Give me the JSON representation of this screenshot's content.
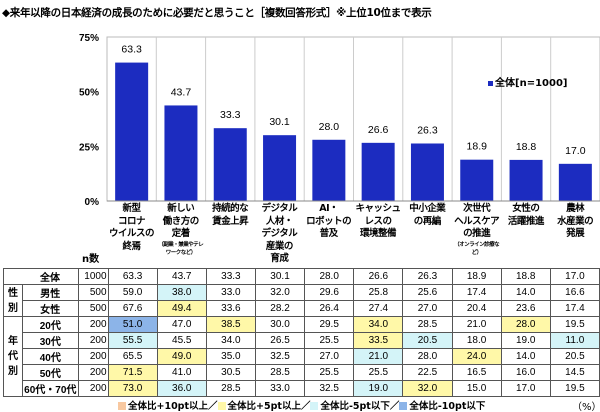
{
  "title": "◆来年以降の日本経済の成長のために必要だと思うこと［複数回答形式］※上位10位まで表示",
  "chart_data": {
    "type": "bar",
    "categories": [
      {
        "lines": [
          "新型",
          "コロナ",
          "ウイルスの",
          "終焉"
        ],
        "note": ""
      },
      {
        "lines": [
          "新しい",
          "働き方の",
          "定着"
        ],
        "note": "（副業・兼業やテレワークなど）"
      },
      {
        "lines": [
          "持続的な",
          "賃金上昇"
        ],
        "note": ""
      },
      {
        "lines": [
          "デジタル",
          "人材・",
          "デジタル",
          "産業の",
          "育成"
        ],
        "note": ""
      },
      {
        "lines": [
          "AI・",
          "ロボットの",
          "普及"
        ],
        "note": ""
      },
      {
        "lines": [
          "キャッシュ",
          "レスの",
          "環境整備"
        ],
        "note": ""
      },
      {
        "lines": [
          "中小企業",
          "の再編"
        ],
        "note": ""
      },
      {
        "lines": [
          "次世代",
          "ヘルスケア",
          "の推進"
        ],
        "note": "（オンライン診療など）"
      },
      {
        "lines": [
          "女性の",
          "活躍推進"
        ],
        "note": ""
      },
      {
        "lines": [
          "農林",
          "水産業の",
          "発展"
        ],
        "note": ""
      }
    ],
    "series": [
      {
        "name": "全体[n=1000]",
        "values": [
          63.3,
          43.7,
          33.3,
          30.1,
          28.0,
          26.6,
          26.3,
          18.9,
          18.8,
          17.0
        ]
      }
    ],
    "yticks": [
      "75%",
      "50%",
      "25%",
      "0%"
    ],
    "ylim": [
      0,
      75
    ],
    "bar_color": "#1c2cc0",
    "legend_position": "right"
  },
  "table": {
    "n_header": "n数",
    "groups": [
      {
        "label": "性\n別",
        "rows": 2
      },
      {
        "label": "年\n代\n別",
        "rows": 5
      }
    ],
    "rows": [
      {
        "label": "全体",
        "n": "1000",
        "values": [
          "63.3",
          "43.7",
          "33.3",
          "30.1",
          "28.0",
          "26.6",
          "26.3",
          "18.9",
          "18.8",
          "17.0"
        ],
        "hl": [
          "",
          "",
          "",
          "",
          "",
          "",
          "",
          "",
          "",
          ""
        ]
      },
      {
        "label": "男性",
        "n": "500",
        "values": [
          "59.0",
          "38.0",
          "33.0",
          "32.0",
          "29.6",
          "25.8",
          "25.6",
          "17.4",
          "14.0",
          "16.6"
        ],
        "hl": [
          "",
          "m5",
          "",
          "",
          "",
          "",
          "",
          "",
          "",
          ""
        ]
      },
      {
        "label": "女性",
        "n": "500",
        "values": [
          "67.6",
          "49.4",
          "33.6",
          "28.2",
          "26.4",
          "27.4",
          "27.0",
          "20.4",
          "23.6",
          "17.4"
        ],
        "hl": [
          "",
          "p5",
          "",
          "",
          "",
          "",
          "",
          "",
          "",
          ""
        ]
      },
      {
        "label": "20代",
        "n": "200",
        "values": [
          "51.0",
          "47.0",
          "38.5",
          "30.0",
          "29.5",
          "34.0",
          "28.5",
          "21.0",
          "28.0",
          "19.5"
        ],
        "hl": [
          "m10",
          "",
          "p5",
          "",
          "",
          "p5",
          "",
          "",
          "p5",
          ""
        ]
      },
      {
        "label": "30代",
        "n": "200",
        "values": [
          "55.5",
          "45.5",
          "34.0",
          "26.5",
          "25.5",
          "33.5",
          "20.5",
          "18.0",
          "19.0",
          "11.0"
        ],
        "hl": [
          "m5",
          "",
          "",
          "",
          "",
          "p5",
          "m5",
          "",
          "",
          "m5"
        ]
      },
      {
        "label": "40代",
        "n": "200",
        "values": [
          "65.5",
          "49.0",
          "35.0",
          "32.5",
          "27.0",
          "21.0",
          "28.0",
          "24.0",
          "14.0",
          "20.5"
        ],
        "hl": [
          "",
          "p5",
          "",
          "",
          "",
          "m5",
          "",
          "p5",
          "",
          ""
        ]
      },
      {
        "label": "50代",
        "n": "200",
        "values": [
          "71.5",
          "41.0",
          "30.5",
          "28.5",
          "25.5",
          "25.5",
          "22.5",
          "16.5",
          "16.0",
          "14.5"
        ],
        "hl": [
          "p5",
          "",
          "",
          "",
          "",
          "",
          "",
          "",
          "",
          ""
        ]
      },
      {
        "label": "60代・70代",
        "n": "200",
        "values": [
          "73.0",
          "36.0",
          "28.5",
          "33.0",
          "32.5",
          "19.0",
          "32.0",
          "15.0",
          "17.0",
          "19.5"
        ],
        "hl": [
          "p5",
          "m5",
          "",
          "",
          "",
          "m5",
          "p5",
          "",
          "",
          ""
        ]
      }
    ]
  },
  "footer": {
    "items": [
      {
        "label": "全体比+10pt以上／",
        "color": "#f8c8a0"
      },
      {
        "label": "全体比+5pt以上／",
        "color": "#fff8a8"
      },
      {
        "label": "全体比-5pt以下／",
        "color": "#d4f4f8"
      },
      {
        "label": "全体比-10pt以下",
        "color": "#8cb4e8"
      }
    ],
    "unit": "（%）"
  }
}
